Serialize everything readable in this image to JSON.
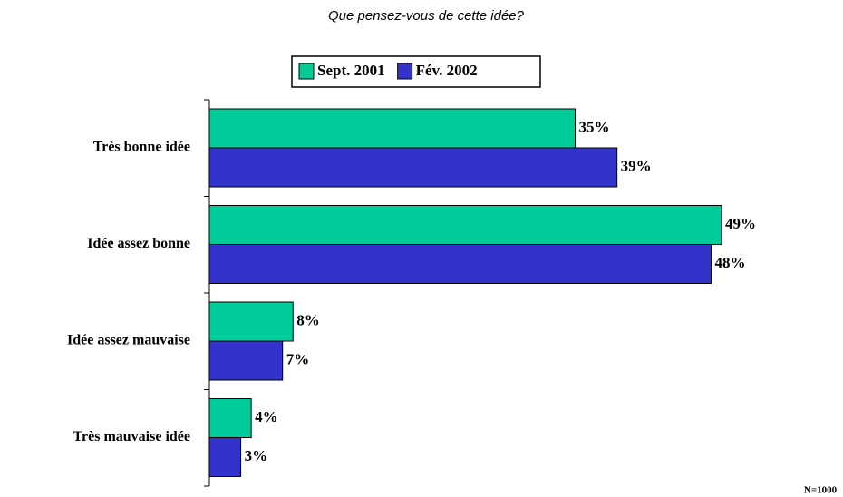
{
  "chart_data": {
    "type": "hbar",
    "title": "Que pensez-vous de cette idée?",
    "categories": [
      "Très bonne idée",
      "Idée assez bonne",
      "Idée assez mauvaise",
      "Très mauvaise idée"
    ],
    "series": [
      {
        "name": "Sept. 2001",
        "color": "#00cc99",
        "values": [
          35,
          49,
          8,
          4
        ],
        "value_labels": [
          "35%",
          "49%",
          "8%",
          "4%"
        ]
      },
      {
        "name": "Fév. 2002",
        "color": "#3333cc",
        "values": [
          39,
          48,
          7,
          3
        ],
        "value_labels": [
          "39%",
          "48%",
          "7%",
          "3%"
        ]
      }
    ],
    "legend": "top",
    "note": "N=1000"
  }
}
